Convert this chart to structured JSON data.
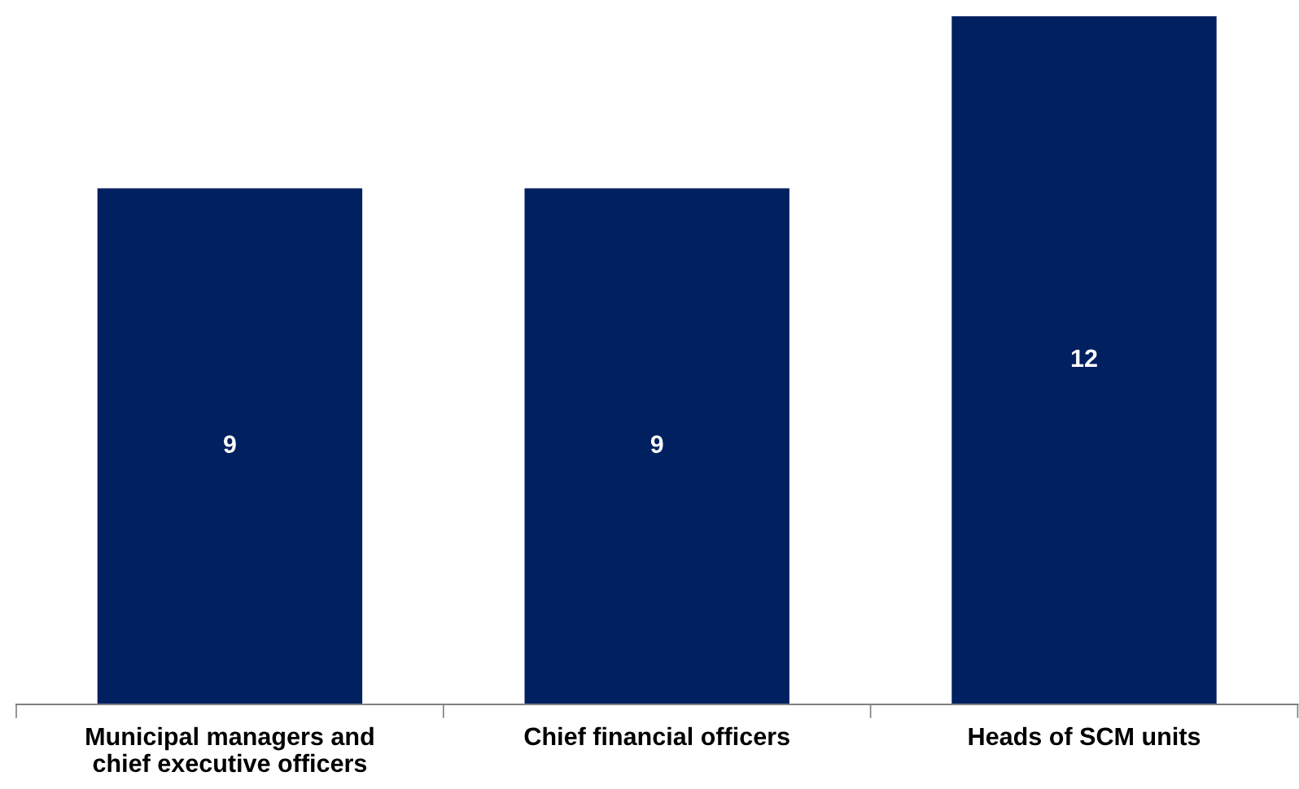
{
  "chart_data": {
    "type": "bar",
    "categories": [
      "Municipal managers and\nchief executive officers",
      "Chief financial officers",
      "Heads of SCM units"
    ],
    "values": [
      9,
      9,
      12
    ],
    "color": "#002060",
    "data_labels": true,
    "grid": false,
    "legend": false,
    "tick_labels": "x"
  }
}
